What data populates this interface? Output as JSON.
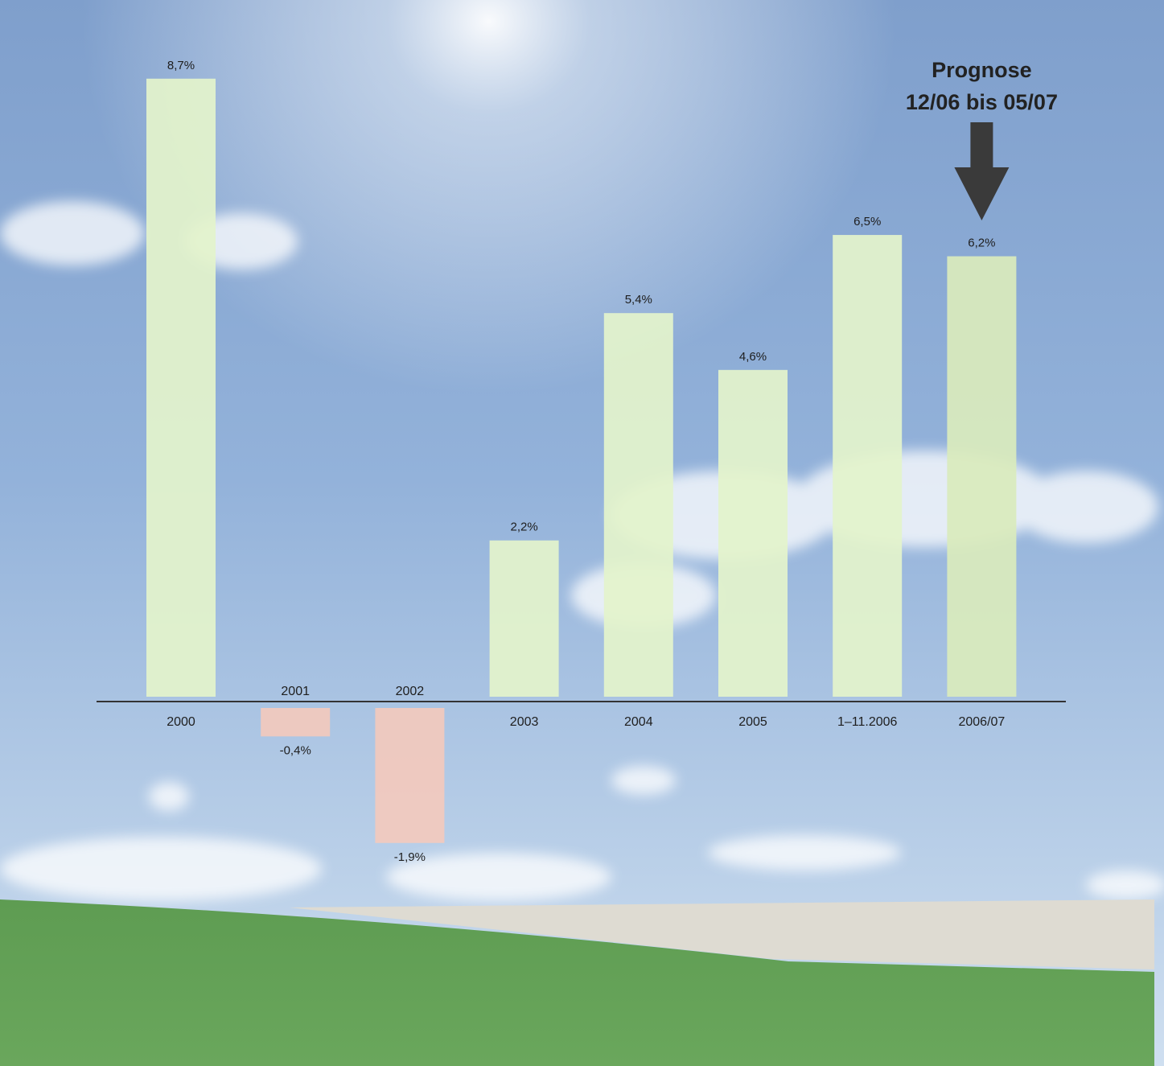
{
  "chart_data": {
    "type": "bar",
    "categories": [
      "2000",
      "2001",
      "2002",
      "2003",
      "2004",
      "2005",
      "1–11.2006",
      "2006/07"
    ],
    "values": [
      8.7,
      -0.4,
      -1.9,
      2.2,
      5.4,
      4.6,
      6.5,
      6.2
    ],
    "value_labels": [
      "8,7%",
      "-0,4%",
      "-1,9%",
      "2,2%",
      "5,4%",
      "4,6%",
      "6,5%",
      "6,2%"
    ],
    "title": "",
    "xlabel": "",
    "ylabel": "",
    "ylim": [
      -2,
      9
    ],
    "grid": false,
    "legend": "none",
    "annotation": {
      "lines": [
        "Prognose",
        "12/06 bis 05/07"
      ],
      "target_category": "2006/07"
    },
    "colors": {
      "positive_bar": "#e3f3cb",
      "negative_bar": "#f2c9bd",
      "forecast_bar": "#d9ebbc",
      "baseline": "#333333",
      "arrow": "#3a3a3a"
    }
  }
}
